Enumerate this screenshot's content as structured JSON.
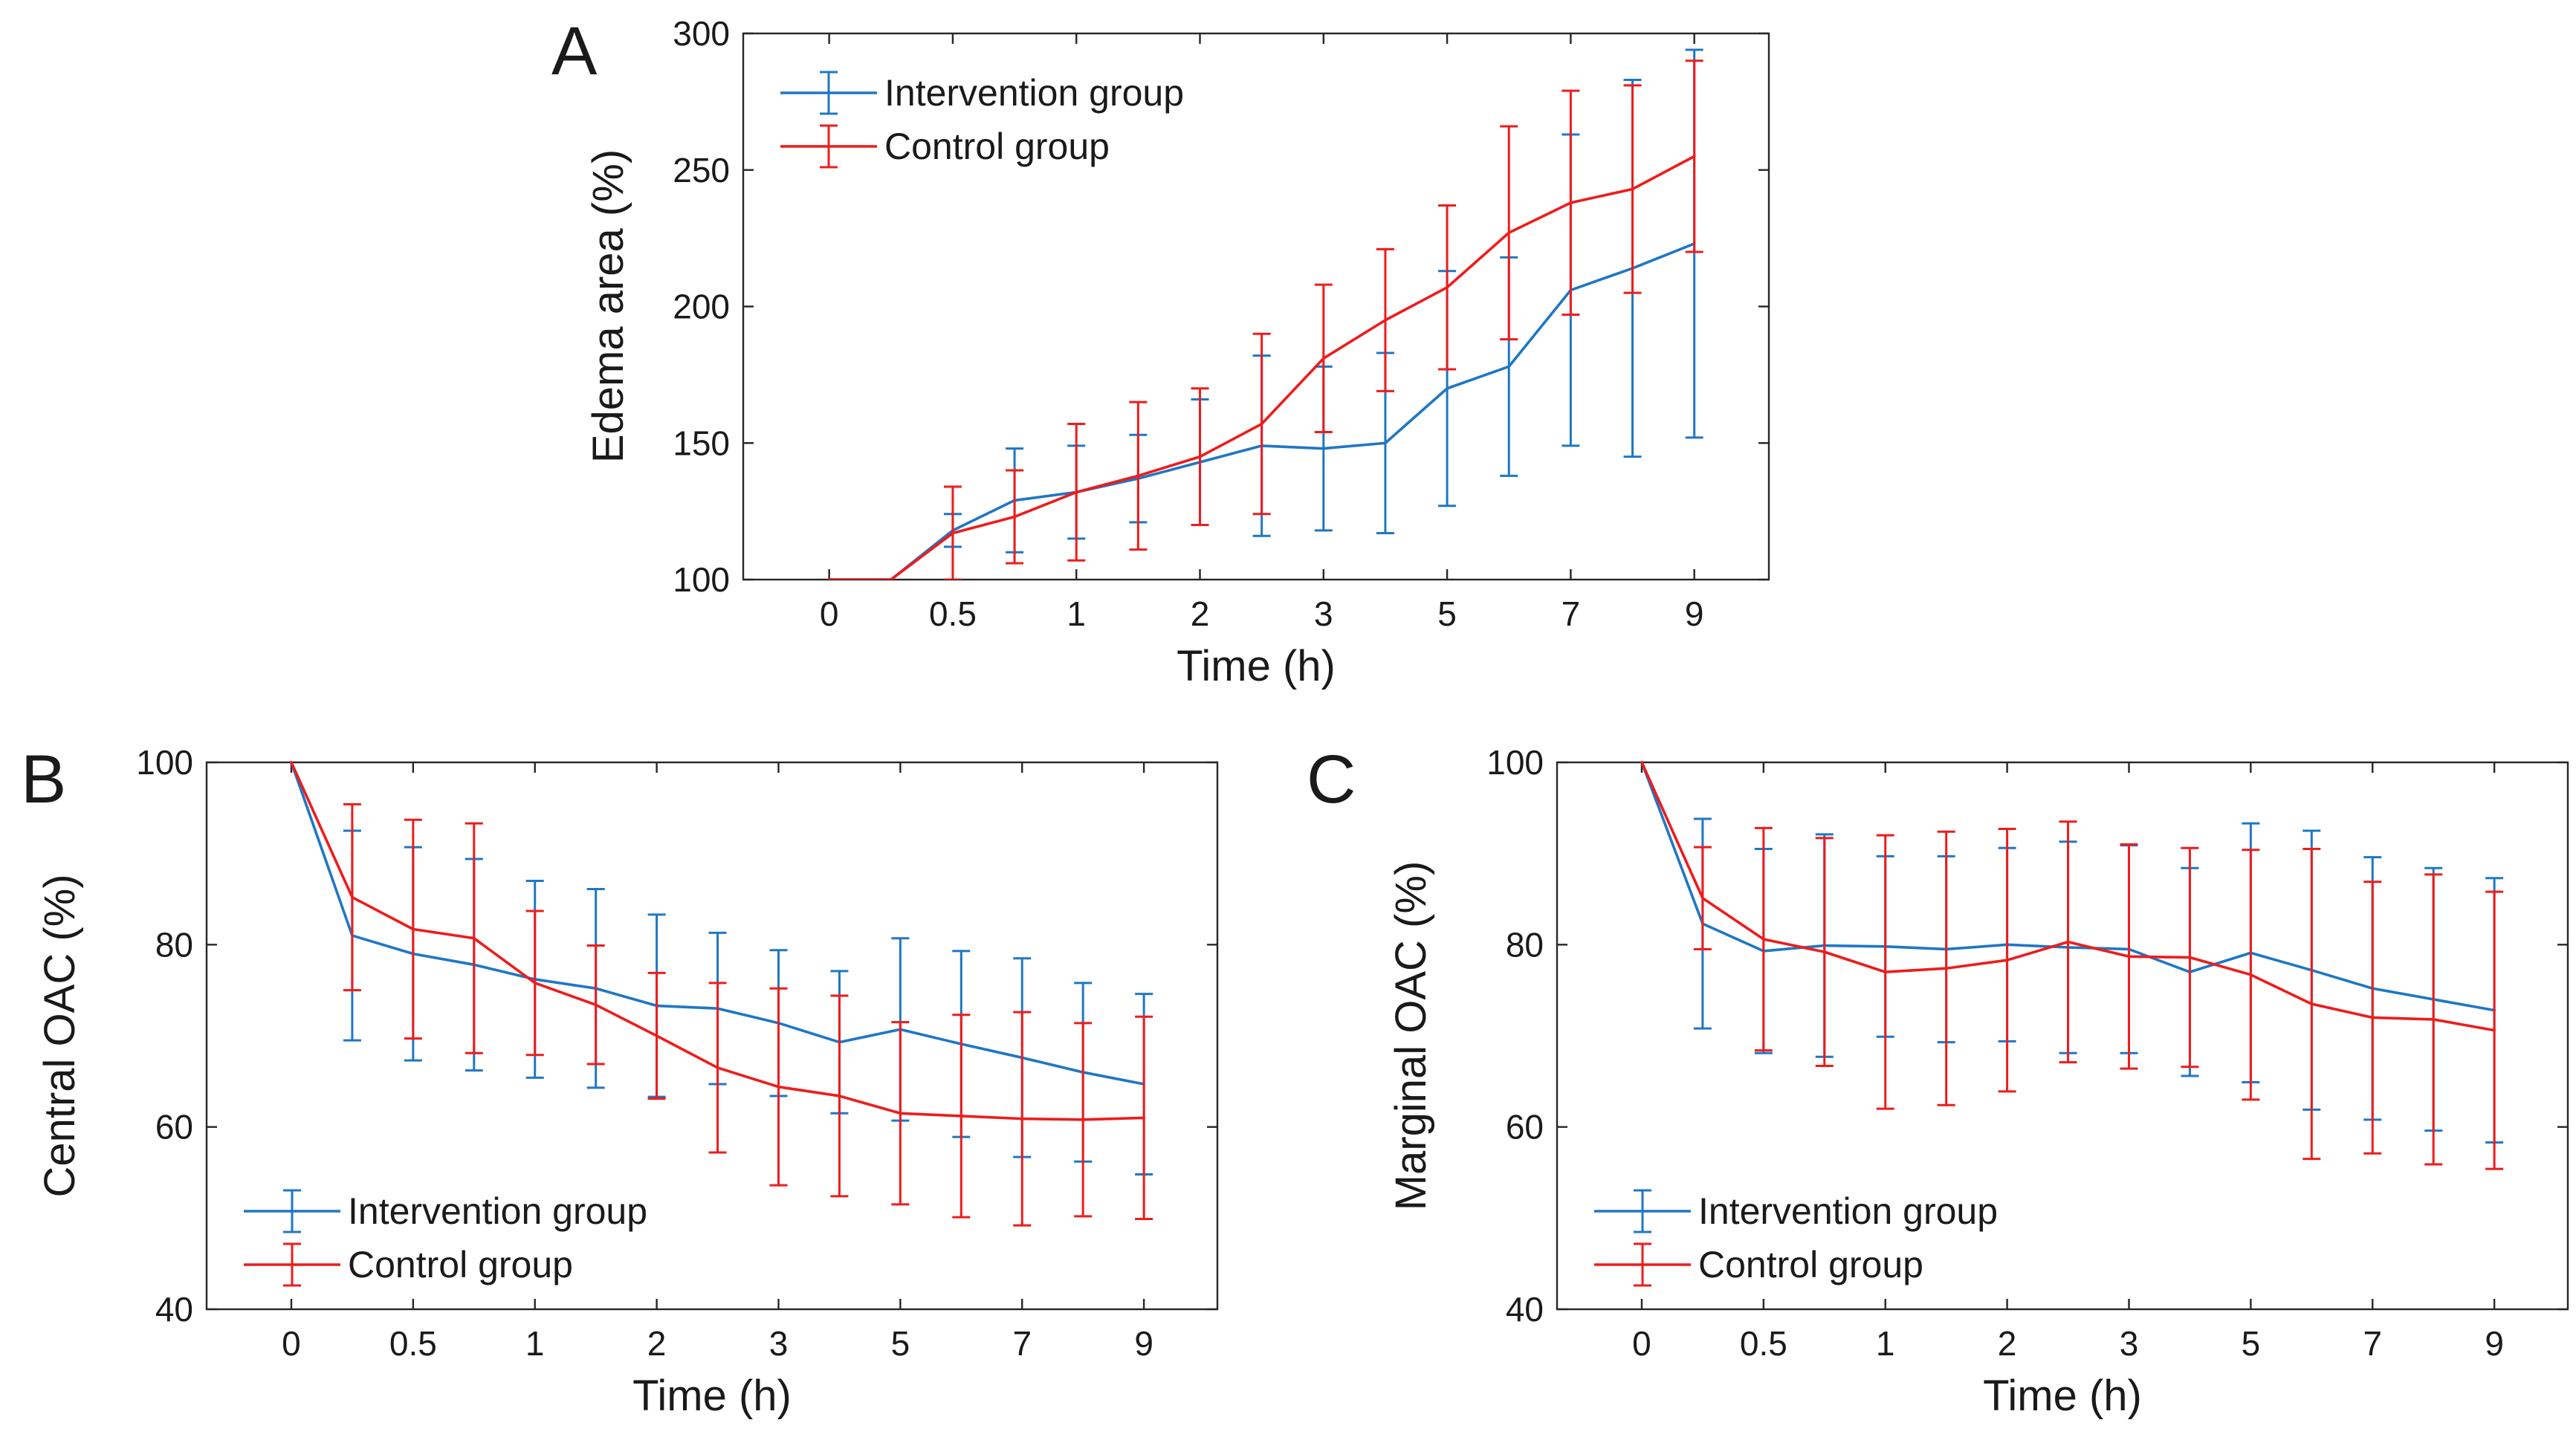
{
  "chart_data": [
    {
      "type": "line",
      "panel_label": "A",
      "title": "",
      "xlabel": "Time (h)",
      "ylabel": "Edema area (%)",
      "xticks": [
        "0",
        "0.5",
        "1",
        "2",
        "3",
        "5",
        "7",
        "9"
      ],
      "x": [
        0,
        0.25,
        0.5,
        0.75,
        1,
        1.5,
        2,
        2.5,
        3,
        4,
        5,
        6,
        7,
        8,
        9
      ],
      "ylim": [
        100,
        300
      ],
      "yticks": [
        100,
        150,
        200,
        250,
        300
      ],
      "legend": "top-left",
      "series": [
        {
          "name": "Intervention group",
          "color": "#1f77c4",
          "values": [
            100,
            100,
            118,
            129,
            132,
            137,
            143,
            149,
            148,
            150,
            170,
            178,
            206,
            214,
            223
          ],
          "errors": [
            0,
            0,
            6,
            19,
            17,
            16,
            23,
            33,
            30,
            33,
            43,
            40,
            57,
            69,
            71
          ]
        },
        {
          "name": "Control group",
          "color": "#ee1c1c",
          "values": [
            100,
            100,
            117,
            123,
            132,
            138,
            145,
            157,
            181,
            195,
            207,
            227,
            238,
            243,
            255
          ],
          "errors": [
            0,
            0,
            17,
            17,
            25,
            27,
            25,
            33,
            27,
            26,
            30,
            39,
            41,
            38,
            35
          ]
        }
      ]
    },
    {
      "type": "line",
      "panel_label": "B",
      "title": "",
      "xlabel": "Time (h)",
      "ylabel": "Central OAC (%)",
      "xticks": [
        "0",
        "0.5",
        "1",
        "2",
        "3",
        "5",
        "7",
        "9"
      ],
      "x": [
        0,
        0.25,
        0.5,
        0.75,
        1,
        1.5,
        2,
        2.5,
        3,
        4,
        5,
        6,
        7,
        8,
        9
      ],
      "ylim": [
        40,
        100
      ],
      "yticks": [
        40,
        60,
        80,
        100
      ],
      "legend": "bottom-left",
      "series": [
        {
          "name": "Intervention group",
          "color": "#1f77c4",
          "values": [
            100,
            81,
            79,
            77.8,
            76.2,
            75.2,
            73.3,
            73,
            71.4,
            69.3,
            70.7,
            69.1,
            67.6,
            66,
            64.7
          ],
          "errors": [
            0,
            11.5,
            11.7,
            11.6,
            10.8,
            10.9,
            10,
            8.3,
            8,
            7.8,
            10,
            10.2,
            10.9,
            9.8,
            9.9
          ]
        },
        {
          "name": "Control group",
          "color": "#ee1c1c",
          "values": [
            100,
            85.2,
            81.7,
            80.7,
            75.8,
            73.4,
            70,
            66.5,
            64.4,
            63.4,
            61.5,
            61.2,
            60.9,
            60.8,
            61
          ],
          "errors": [
            0,
            10.2,
            12,
            12.6,
            7.9,
            6.5,
            6.9,
            9.3,
            10.8,
            11,
            10,
            11.1,
            11.7,
            10.6,
            11.1
          ]
        }
      ]
    },
    {
      "type": "line",
      "panel_label": "C",
      "title": "",
      "xlabel": "Time (h)",
      "ylabel": "Marginal OAC (%)",
      "xticks": [
        "0",
        "0.5",
        "1",
        "2",
        "3",
        "5",
        "7",
        "9"
      ],
      "x": [
        0,
        0.25,
        0.5,
        0.75,
        1,
        1.5,
        2,
        2.5,
        3,
        4,
        5,
        6,
        7,
        8,
        9
      ],
      "ylim": [
        40,
        100
      ],
      "yticks": [
        40,
        60,
        80,
        100
      ],
      "legend": "bottom-left",
      "series": [
        {
          "name": "Intervention group",
          "color": "#1f77c4",
          "values": [
            100,
            82.3,
            79.3,
            79.9,
            79.8,
            79.5,
            80,
            79.7,
            79.5,
            77,
            79.1,
            77.2,
            75.2,
            74,
            72.8
          ],
          "errors": [
            0,
            11.5,
            11.2,
            12.2,
            9.9,
            10.2,
            10.6,
            11.6,
            11.4,
            11.4,
            14.2,
            15.3,
            14.4,
            14.4,
            14.5
          ]
        },
        {
          "name": "Control group",
          "color": "#ee1c1c",
          "values": [
            100,
            85.1,
            80.6,
            79.2,
            77,
            77.4,
            78.3,
            80.3,
            78.7,
            78.6,
            76.7,
            73.5,
            72,
            71.8,
            70.6
          ],
          "errors": [
            0,
            5.6,
            12.2,
            12.5,
            15,
            15,
            14.4,
            13.2,
            12.3,
            12,
            13.7,
            17,
            14.9,
            15.9,
            15.2
          ]
        }
      ]
    }
  ]
}
